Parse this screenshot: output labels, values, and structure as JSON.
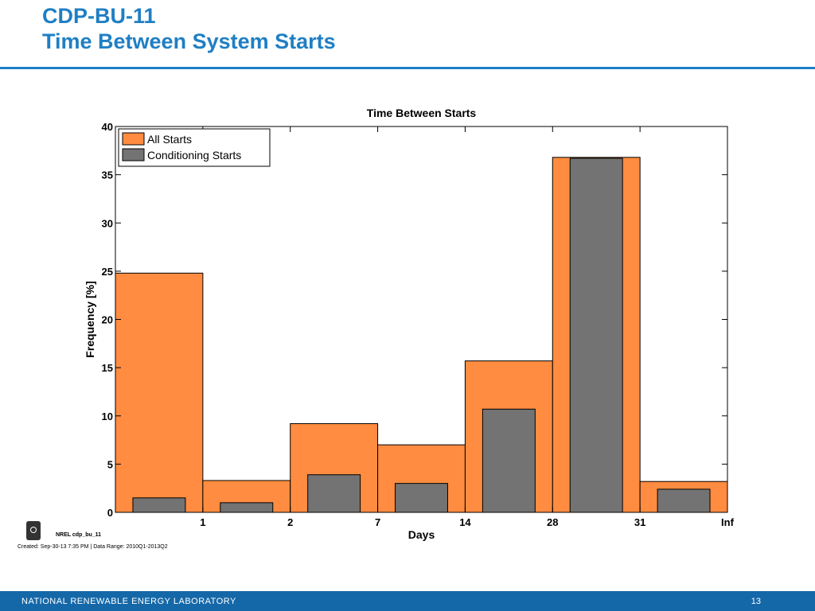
{
  "slide": {
    "title_line1": "CDP-BU-11",
    "title_line2": "Time Between System Starts",
    "accent_color": "#1f7fc4"
  },
  "figure": {
    "id_label": "NREL cdp_bu_11",
    "created": "Created: Sep-30-13 7:35 PM | Data Range: 2010Q1-2013Q2",
    "logo_icon": "nrel-power-logo"
  },
  "footer": {
    "organization": "NATIONAL RENEWABLE ENERGY LABORATORY",
    "page_number": "13",
    "background_color": "#1568a8"
  },
  "chart_data": {
    "type": "bar",
    "title": "Time Between Starts",
    "xlabel": "Days",
    "ylabel": "Frequency [%]",
    "ylim": [
      0,
      40
    ],
    "yticks": [
      0,
      5,
      10,
      15,
      20,
      25,
      30,
      35,
      40
    ],
    "xtick_labels": [
      "1",
      "2",
      "7",
      "14",
      "28",
      "31",
      "Inf"
    ],
    "bin_count": 7,
    "series": [
      {
        "name": "All Starts",
        "color": "#ff8c40",
        "values": [
          24.8,
          3.3,
          9.2,
          7.0,
          15.7,
          36.8,
          3.2
        ]
      },
      {
        "name": "Conditioning Starts",
        "color": "#737373",
        "values": [
          1.5,
          1.0,
          3.9,
          3.0,
          10.7,
          36.7,
          2.4
        ]
      }
    ],
    "legend_position": "top-left",
    "grid": false
  }
}
